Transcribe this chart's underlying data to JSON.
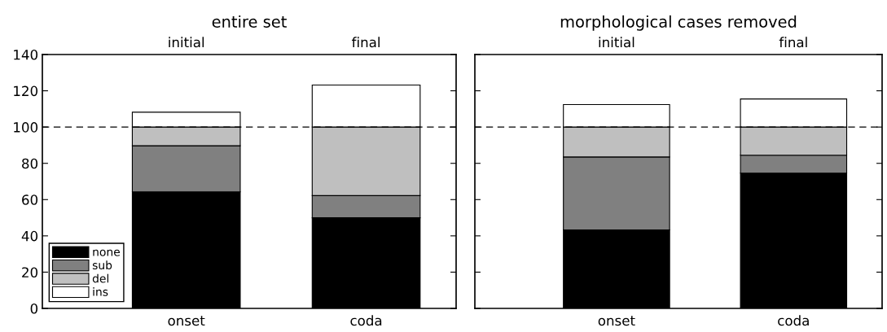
{
  "chart_data": [
    {
      "type": "bar",
      "title": "entire set",
      "stacked": true,
      "categories": [
        "onset",
        "coda"
      ],
      "series": [
        {
          "name": "none",
          "color": "#000000",
          "values": [
            64.3,
            50
          ]
        },
        {
          "name": "sub",
          "color": "#808080",
          "values": [
            25.4,
            12.2
          ]
        },
        {
          "name": "del",
          "color": "#bfbfbf",
          "values": [
            10.3,
            37.8
          ]
        },
        {
          "name": "ins",
          "color": "#ffffff",
          "values": [
            8.2,
            23.2
          ]
        }
      ],
      "annotations": [
        "initial",
        "final"
      ],
      "ylim": [
        0,
        140
      ],
      "yticks": [
        0,
        20,
        40,
        60,
        80,
        100,
        120,
        140
      ],
      "ref_lines": [
        {
          "axis": "y",
          "value": 100,
          "color": "#000000",
          "line_style": "dashed"
        }
      ],
      "legend": "bottom left",
      "grid": false
    },
    {
      "type": "bar",
      "title": "morphological cases removed",
      "stacked": true,
      "categories": [
        "onset",
        "coda"
      ],
      "series": [
        {
          "color": "#000000",
          "values": [
            43.3,
            74.6
          ]
        },
        {
          "color": "#808080",
          "values": [
            40.2,
            9.9
          ]
        },
        {
          "color": "#bfbfbf",
          "values": [
            16.5,
            15.5
          ]
        },
        {
          "color": "#ffffff",
          "values": [
            12.4,
            15.5
          ]
        }
      ],
      "annotations": [
        "initial",
        "final"
      ],
      "ylim": [
        0,
        140
      ],
      "yticks": [
        0,
        20,
        40,
        60,
        80,
        100,
        120,
        140
      ],
      "tick_labels": "x",
      "ref_lines": [
        {
          "axis": "y",
          "value": 100,
          "color": "#000000",
          "line_style": "dashed"
        }
      ],
      "legend": false,
      "grid": false
    }
  ]
}
